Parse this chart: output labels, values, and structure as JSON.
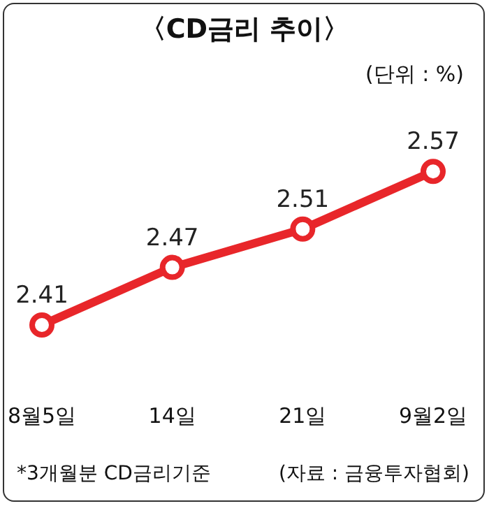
{
  "chart_data": {
    "type": "line",
    "title": "〈CD금리 추이〉",
    "subtitle": "(단위 : %)",
    "categories": [
      "8월5일",
      "14일",
      "21일",
      "9월2일"
    ],
    "series": [
      {
        "color": "#e8262a",
        "values": [
          2.41,
          2.47,
          2.51,
          2.57
        ]
      }
    ],
    "data_labels": true,
    "marker": "circle",
    "line_style": "solid",
    "grid": false,
    "tick_labels": "x",
    "annotations": [
      "*3개월분 CD금리기준",
      "(자료 : 금융투자협회)"
    ]
  }
}
